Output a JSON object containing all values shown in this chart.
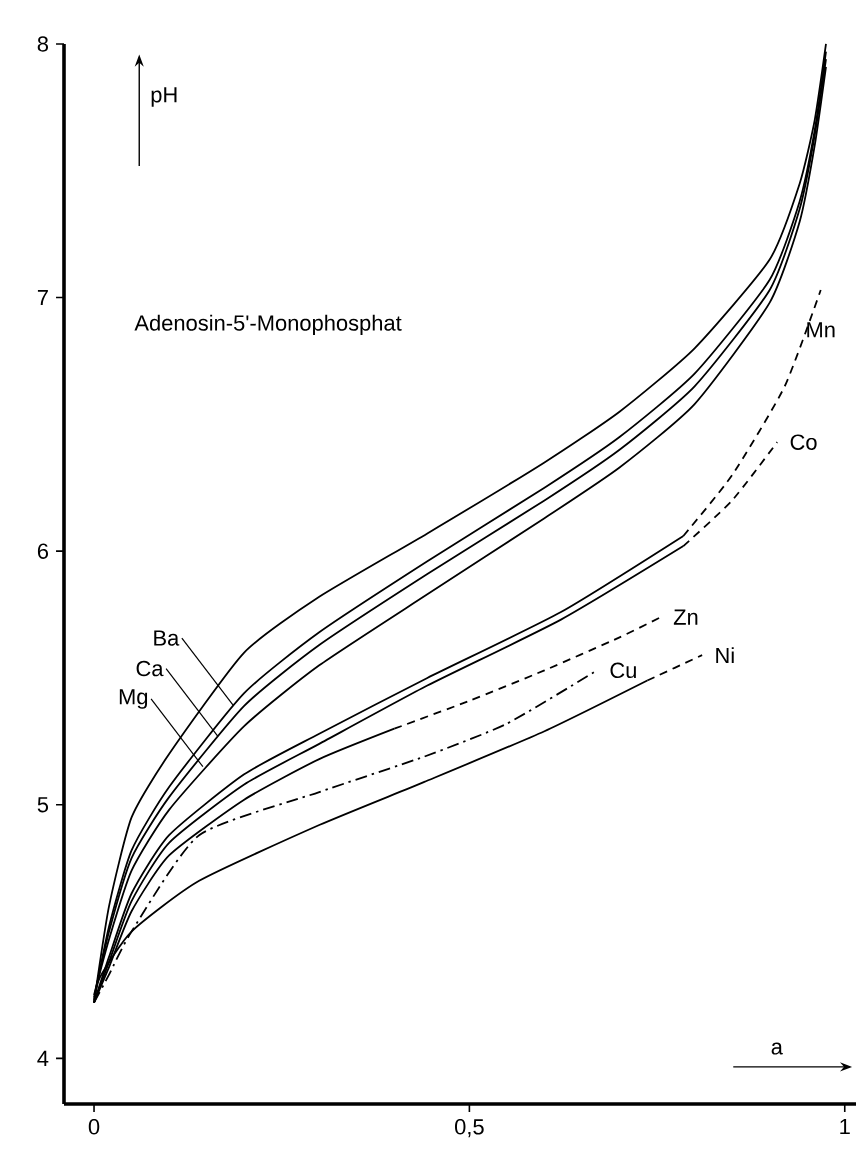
{
  "chart_data": {
    "type": "line",
    "title": "Adenosin-5'-Monophosphat",
    "xlabel": "a",
    "ylabel": "pH",
    "xlim": [
      -0.04,
      1.015
    ],
    "ylim": [
      3.82,
      8
    ],
    "xticks": [
      0,
      {
        "value": 0.5,
        "label": "0,5"
      },
      1
    ],
    "yticks": [
      4,
      5,
      6,
      7,
      8
    ],
    "marker": "none",
    "series": [
      {
        "color": "#000000",
        "line_style": "solid",
        "x": [
          0,
          0.02,
          0.05,
          0.1,
          0.2,
          0.3,
          0.444,
          0.6,
          0.7,
          0.8,
          0.9,
          0.94,
          0.96,
          0.975
        ],
        "values": [
          4.22,
          4.6,
          4.95,
          5.2,
          5.6,
          5.82,
          6.07,
          6.35,
          6.55,
          6.8,
          7.15,
          7.45,
          7.7,
          8.0
        ]
      },
      {
        "color": "#000000",
        "line_style": "solid",
        "x": [
          0,
          0.02,
          0.05,
          0.1,
          0.2,
          0.3,
          0.444,
          0.6,
          0.7,
          0.8,
          0.9,
          0.94,
          0.96,
          0.975
        ],
        "values": [
          4.23,
          4.52,
          4.82,
          5.07,
          5.44,
          5.68,
          5.96,
          6.25,
          6.45,
          6.7,
          7.07,
          7.38,
          7.66,
          7.97
        ]
      },
      {
        "color": "#000000",
        "line_style": "solid",
        "x": [
          0,
          0.02,
          0.05,
          0.1,
          0.2,
          0.3,
          0.444,
          0.6,
          0.7,
          0.8,
          0.9,
          0.94,
          0.96,
          0.975
        ],
        "values": [
          4.24,
          4.5,
          4.79,
          5.03,
          5.39,
          5.63,
          5.91,
          6.2,
          6.4,
          6.65,
          7.03,
          7.35,
          7.64,
          7.94
        ]
      },
      {
        "color": "#000000",
        "line_style": "solid",
        "x": [
          0,
          0.02,
          0.05,
          0.1,
          0.2,
          0.3,
          0.444,
          0.6,
          0.7,
          0.8,
          0.9,
          0.94,
          0.96,
          0.975
        ],
        "values": [
          4.25,
          4.47,
          4.74,
          4.98,
          5.31,
          5.55,
          5.83,
          6.13,
          6.33,
          6.58,
          6.98,
          7.3,
          7.6,
          7.91
        ]
      },
      {
        "color": "#000000",
        "line_style": "solid",
        "x": [
          0,
          0.02,
          0.05,
          0.1,
          0.2,
          0.3,
          0.444,
          0.622,
          0.785
        ],
        "values": [
          4.22,
          4.4,
          4.65,
          4.88,
          5.12,
          5.28,
          5.5,
          5.76,
          6.06
        ]
      },
      {
        "color": "#000000",
        "line_style": "dashed",
        "x": [
          0.785,
          0.85,
          0.92,
          0.968
        ],
        "values": [
          6.06,
          6.3,
          6.65,
          7.03
        ]
      },
      {
        "color": "#000000",
        "line_style": "solid",
        "x": [
          0,
          0.02,
          0.05,
          0.1,
          0.2,
          0.3,
          0.444,
          0.622,
          0.785
        ],
        "values": [
          4.22,
          4.38,
          4.62,
          4.85,
          5.08,
          5.24,
          5.47,
          5.73,
          6.02
        ]
      },
      {
        "color": "#000000",
        "line_style": "dashed",
        "x": [
          0.785,
          0.85,
          0.91
        ],
        "values": [
          6.02,
          6.2,
          6.43
        ]
      },
      {
        "color": "#000000",
        "line_style": "solid",
        "x": [
          0,
          0.02,
          0.05,
          0.1,
          0.2,
          0.3,
          0.4
        ],
        "values": [
          4.22,
          4.36,
          4.58,
          4.8,
          5.02,
          5.18,
          5.3
        ]
      },
      {
        "color": "#000000",
        "line_style": "dashed",
        "x": [
          0.4,
          0.5,
          0.6,
          0.7,
          0.755
        ],
        "values": [
          5.3,
          5.41,
          5.53,
          5.66,
          5.74
        ]
      },
      {
        "color": "#000000",
        "line_style": "dashdot",
        "x": [
          0,
          0.02,
          0.05,
          0.14,
          0.3,
          0.44,
          0.55,
          0.67
        ],
        "values": [
          4.22,
          4.33,
          4.5,
          4.88,
          5.05,
          5.19,
          5.32,
          5.53
        ]
      },
      {
        "color": "#000000",
        "line_style": "solid",
        "x": [
          0,
          0.008,
          0.05,
          0.14,
          0.3,
          0.44,
          0.6,
          0.737
        ],
        "values": [
          4.22,
          4.32,
          4.5,
          4.7,
          4.92,
          5.09,
          5.29,
          5.49
        ]
      },
      {
        "color": "#000000",
        "line_style": "dashed",
        "x": [
          0.737,
          0.81
        ],
        "values": [
          5.49,
          5.59
        ]
      }
    ],
    "annotations": [
      {
        "text": "Ba",
        "x": 0.186,
        "y": 5.39
      },
      {
        "text": "Ca",
        "x": 0.165,
        "y": 5.27
      },
      {
        "text": "Mg",
        "x": 0.145,
        "y": 5.15
      },
      {
        "text": "Mn",
        "x": 0.968,
        "y": 7.03
      },
      {
        "text": "Co",
        "x": 0.91,
        "y": 6.43
      },
      {
        "text": "Zn",
        "x": 0.755,
        "y": 5.74
      },
      {
        "text": "Cu",
        "x": 0.67,
        "y": 5.53
      },
      {
        "text": "Ni",
        "x": 0.81,
        "y": 5.59
      }
    ]
  }
}
